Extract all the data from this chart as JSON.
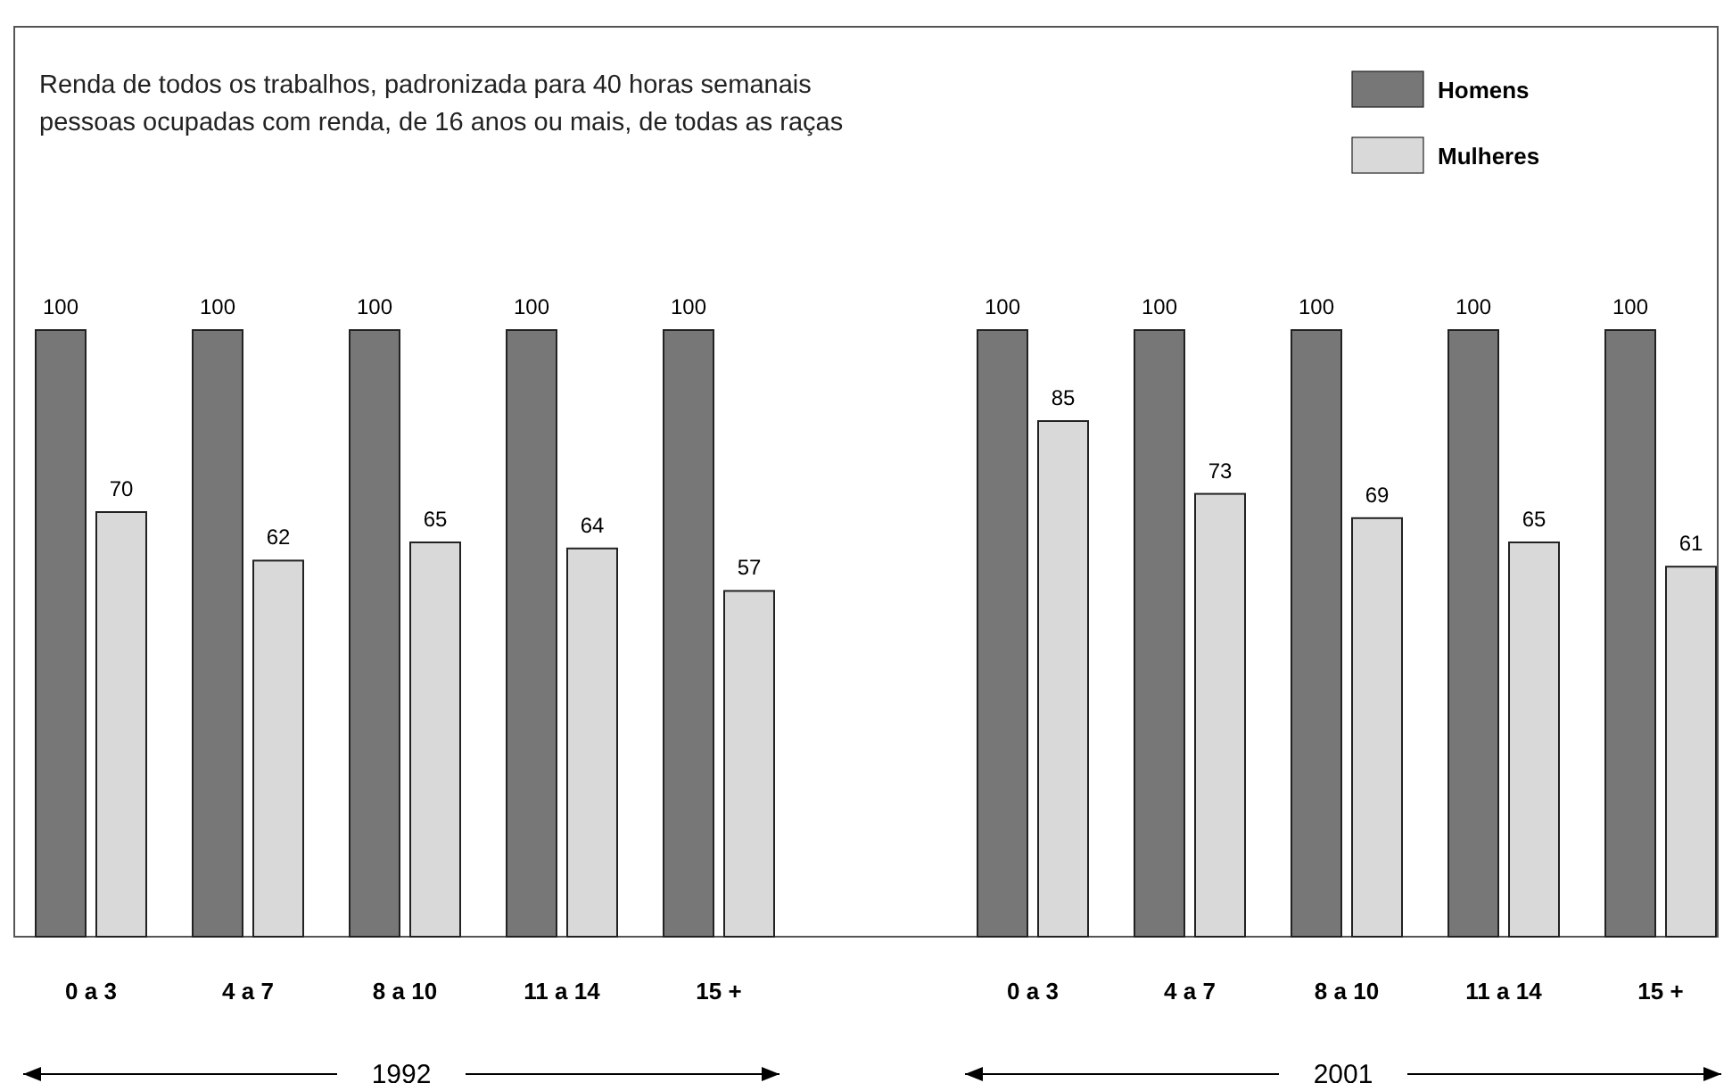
{
  "chart_data": {
    "type": "bar",
    "categories": [
      "0 a 3",
      "4 a 7",
      "8 a 10",
      "11 a 14",
      "15 +",
      null,
      "0 a 3",
      "4 a 7",
      "8 a 10",
      "11 a 14",
      "15 +"
    ],
    "series": [
      {
        "name": "Homens",
        "color": "#777777",
        "values": [
          100,
          100,
          100,
          100,
          100,
          null,
          100,
          100,
          100,
          100,
          100
        ]
      },
      {
        "name": "Mulheres",
        "color": "#d9d9d9",
        "values": [
          70,
          62,
          65,
          64,
          57,
          null,
          85,
          73,
          69,
          65,
          61
        ]
      }
    ],
    "data_labels": true,
    "legend": "top right",
    "annotations": [
      "Renda de todos os trabalhos, padronizada para 40 horas semanais",
      "pessoas ocupadas com renda, de 16 anos ou mais, de todas as raças",
      "1992",
      "2001"
    ]
  }
}
